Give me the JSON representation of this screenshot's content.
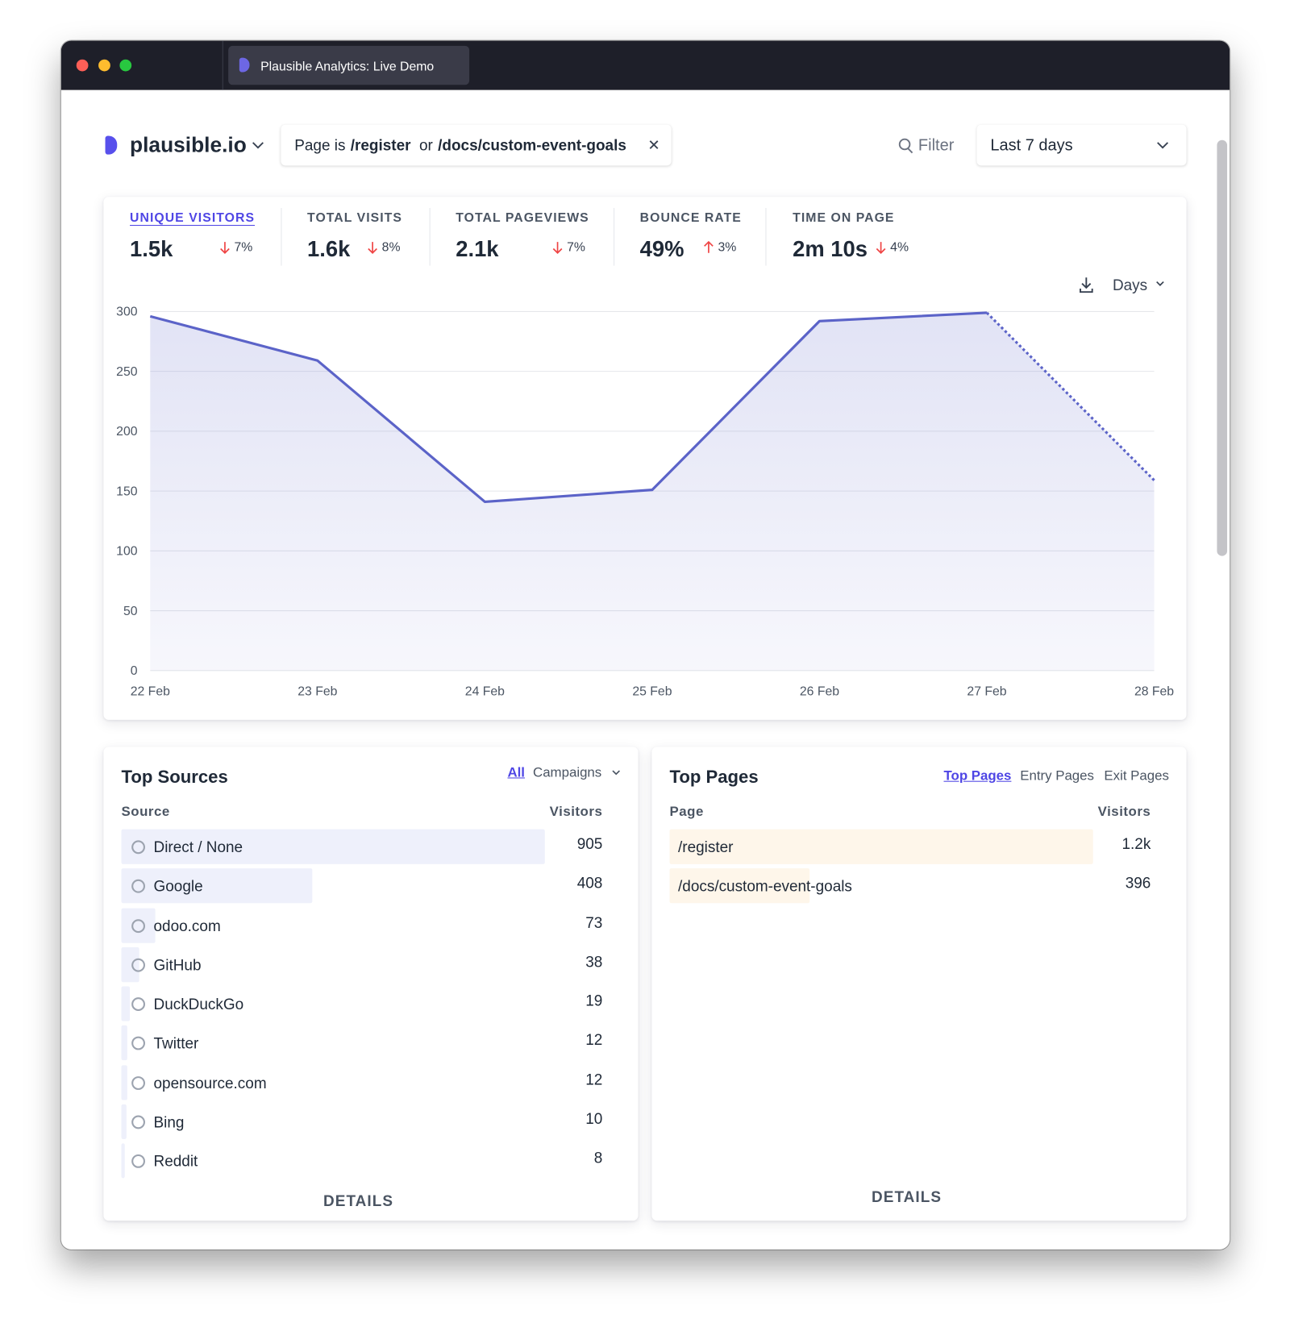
{
  "window": {
    "tab_title": "Plausible Analytics: Live Demo"
  },
  "header": {
    "site": "plausible.io",
    "filter": {
      "parts": [
        "Page is",
        "/register",
        "or",
        "/docs/custom-event-goals"
      ]
    },
    "filter_button": "Filter",
    "date_range": "Last 7 days"
  },
  "metrics": [
    {
      "label": "UNIQUE VISITORS",
      "value": "1.5k",
      "change": "7%",
      "direction": "down",
      "selected": true
    },
    {
      "label": "TOTAL VISITS",
      "value": "1.6k",
      "change": "8%",
      "direction": "down",
      "selected": false
    },
    {
      "label": "TOTAL PAGEVIEWS",
      "value": "2.1k",
      "change": "7%",
      "direction": "down",
      "selected": false
    },
    {
      "label": "BOUNCE RATE",
      "value": "49%",
      "change": "3%",
      "direction": "up",
      "selected": false
    },
    {
      "label": "TIME ON PAGE",
      "value": "2m 10s",
      "change": "4%",
      "direction": "down",
      "selected": false
    }
  ],
  "chart_data": {
    "type": "line",
    "interval": "Days",
    "x": [
      "22 Feb",
      "23 Feb",
      "24 Feb",
      "25 Feb",
      "26 Feb",
      "27 Feb",
      "28 Feb"
    ],
    "series": [
      {
        "color": "#5b63c8",
        "values": [
          296,
          259,
          141,
          151,
          292,
          299,
          159
        ]
      }
    ],
    "dashed_last_segment": true,
    "ylim": [
      0,
      300
    ],
    "yticks": [
      0,
      50,
      100,
      150,
      200,
      250,
      300
    ],
    "grid": true
  },
  "top_sources": {
    "title": "Top Sources",
    "tabs": [
      "All",
      "Campaigns"
    ],
    "active_tab": 0,
    "columns": [
      "Source",
      "Visitors"
    ],
    "rows": [
      {
        "name": "Direct / None",
        "visitors": 905
      },
      {
        "name": "Google",
        "visitors": 408
      },
      {
        "name": "odoo.com",
        "visitors": 73
      },
      {
        "name": "GitHub",
        "visitors": 38
      },
      {
        "name": "DuckDuckGo",
        "visitors": 19
      },
      {
        "name": "Twitter",
        "visitors": 12
      },
      {
        "name": "opensource.com",
        "visitors": 12
      },
      {
        "name": "Bing",
        "visitors": 10
      },
      {
        "name": "Reddit",
        "visitors": 8
      }
    ],
    "details": "DETAILS"
  },
  "top_pages": {
    "title": "Top Pages",
    "tabs": [
      "Top Pages",
      "Entry Pages",
      "Exit Pages"
    ],
    "active_tab": 0,
    "columns": [
      "Page",
      "Visitors"
    ],
    "rows": [
      {
        "name": "/register",
        "visitors": 1200,
        "visitors_label": "1.2k"
      },
      {
        "name": "/docs/custom-event-goals",
        "visitors": 396
      }
    ],
    "details": "DETAILS"
  }
}
